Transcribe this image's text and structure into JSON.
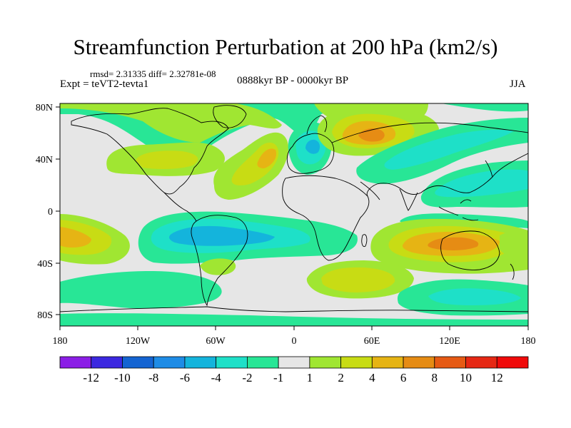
{
  "header": {
    "title": "Streamfunction Perturbation at 200 hPa (km2/s)",
    "stats": "rmsd= 2.31335 diff= 2.32781e-08",
    "experiment": "Expt = teVT2-tevta1",
    "period": "0888kyr BP - 0000kyr BP",
    "season": "JJA"
  },
  "axes": {
    "lat_labels": [
      "80N",
      "40N",
      "0",
      "40S",
      "80S"
    ],
    "lon_labels": [
      "180",
      "120W",
      "60W",
      "0",
      "60E",
      "120E",
      "180"
    ]
  },
  "colorbar": {
    "labels": [
      "-12",
      "-10",
      "-8",
      "-6",
      "-4",
      "-2",
      "-1",
      "1",
      "2",
      "4",
      "6",
      "8",
      "10",
      "12"
    ],
    "colors": [
      "#8b1ee6",
      "#3c28e0",
      "#1464d2",
      "#1e8ce6",
      "#14b4dc",
      "#1ee0c8",
      "#28e696",
      "#e6e6e6",
      "#a0e632",
      "#c8dc14",
      "#e6b414",
      "#e68c14",
      "#e65a14",
      "#e62814",
      "#f00a0a"
    ]
  },
  "palette": {
    "background_field": "#e6e6e6",
    "coast": "#000000"
  }
}
